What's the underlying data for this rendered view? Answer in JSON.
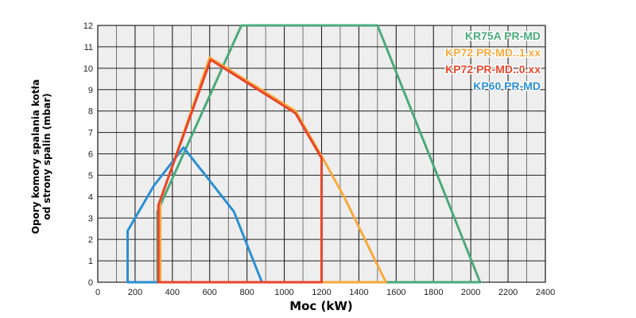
{
  "chart_data": {
    "type": "line",
    "xlabel": "Moc (kW)",
    "ylabel": "Opory komory spalania kotła od strony spalin (mbar)",
    "xlim": [
      0,
      2400
    ],
    "ylim": [
      0,
      12
    ],
    "x_ticks": [
      "0",
      "200",
      "400",
      "600",
      "800",
      "1000",
      "1200",
      "1400",
      "1600",
      "1800",
      "2000",
      "2200",
      "2400"
    ],
    "y_ticks": [
      "0",
      "1",
      "2",
      "3",
      "4",
      "5",
      "6",
      "7",
      "8",
      "9",
      "10",
      "11",
      "12"
    ],
    "grid": true,
    "legend_position": "top-right",
    "series": [
      {
        "name": "KR75A PR-MD",
        "color": "#4aaa7a",
        "x": [
          320,
          320,
          770,
          1500,
          2050,
          320
        ],
        "y": [
          0,
          3.3,
          12,
          12,
          0,
          0
        ]
      },
      {
        "name": "KP72 PR-MD..1.xx",
        "color": "#f7a93b",
        "x": [
          335,
          335,
          600,
          1060,
          1200,
          1320,
          1545,
          335
        ],
        "y": [
          0,
          3.8,
          10.5,
          8.0,
          5.9,
          4.0,
          0,
          0
        ]
      },
      {
        "name": "KP72 PR-MD..0.xx",
        "color": "#e8452c",
        "x": [
          325,
          325,
          605,
          1060,
          1200,
          1200,
          325
        ],
        "y": [
          0,
          3.6,
          10.4,
          7.9,
          5.8,
          0,
          0
        ]
      },
      {
        "name": "KP60 PR-MD",
        "color": "#2b8fd2",
        "x": [
          160,
          160,
          300,
          460,
          730,
          880,
          160
        ],
        "y": [
          0,
          2.4,
          4.5,
          6.3,
          3.3,
          0,
          0
        ]
      }
    ]
  }
}
